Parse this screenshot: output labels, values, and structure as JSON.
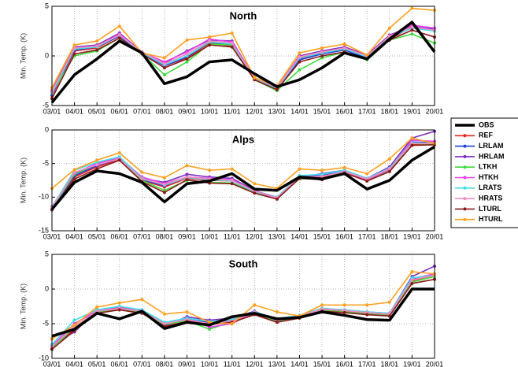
{
  "chart_data": [
    {
      "type": "line",
      "title": "North",
      "y_label": "Min. Temp. (K)",
      "categories": [
        "03/01",
        "04/01",
        "05/01",
        "06/01",
        "07/01",
        "08/01",
        "09/01",
        "10/01",
        "11/01",
        "12/01",
        "13/01",
        "14/01",
        "15/01",
        "16/01",
        "17/01",
        "18/01",
        "19/01",
        "20/01"
      ],
      "ylim": [
        -5,
        5
      ],
      "yticks": [
        -5,
        0,
        5
      ],
      "grid": true,
      "series": [
        {
          "name": "OBS",
          "color": "#000000",
          "values": [
            -4.7,
            -1.9,
            -0.3,
            1.5,
            0.3,
            -2.8,
            -2.1,
            -0.6,
            -0.4,
            -1.8,
            -3.1,
            -2.4,
            -1.2,
            0.3,
            -0.3,
            1.7,
            3.4,
            0.4
          ]
        },
        {
          "name": "REF",
          "color": "#e8231f",
          "values": [
            -4.0,
            0.5,
            0.8,
            2.0,
            0.3,
            -1.0,
            -0.2,
            1.3,
            1.0,
            -2.3,
            -3.3,
            -0.3,
            0.2,
            0.6,
            -0.2,
            1.7,
            2.9,
            2.6
          ]
        },
        {
          "name": "LRLAM",
          "color": "#1f3fdc",
          "values": [
            -3.9,
            0.6,
            0.9,
            2.0,
            0.3,
            -1.0,
            -0.1,
            1.4,
            1.1,
            -2.3,
            -3.3,
            -0.4,
            0.2,
            0.6,
            -0.2,
            1.8,
            2.9,
            2.7
          ]
        },
        {
          "name": "HRLAM",
          "color": "#7b2fbe",
          "values": [
            -3.5,
            0.9,
            1.1,
            2.3,
            0.4,
            -0.7,
            0.5,
            1.6,
            1.5,
            -2.2,
            -3.2,
            0.0,
            0.5,
            0.9,
            0.1,
            2.1,
            3.0,
            2.6
          ]
        },
        {
          "name": "LTKH",
          "color": "#3ddc3d",
          "values": [
            -3.7,
            0.0,
            0.5,
            1.8,
            0.2,
            -1.9,
            -0.6,
            1.2,
            1.1,
            -2.4,
            -3.5,
            -1.4,
            -0.2,
            0.4,
            -0.4,
            1.6,
            2.2,
            1.3
          ]
        },
        {
          "name": "HTKH",
          "color": "#e83ee8",
          "values": [
            -3.6,
            0.8,
            1.0,
            2.2,
            0.4,
            -0.6,
            0.4,
            1.7,
            1.4,
            -2.2,
            -3.2,
            -0.1,
            0.4,
            0.8,
            0.0,
            2.0,
            3.1,
            2.8
          ]
        },
        {
          "name": "LRATS",
          "color": "#3ee0e8",
          "values": [
            -3.8,
            0.7,
            0.9,
            2.1,
            0.3,
            -0.9,
            0.0,
            1.4,
            1.2,
            -2.3,
            -3.3,
            -0.2,
            0.3,
            0.7,
            -0.1,
            1.9,
            2.8,
            2.5
          ]
        },
        {
          "name": "HRATS",
          "color": "#f28cc0",
          "values": [
            -3.6,
            0.8,
            1.0,
            2.1,
            0.4,
            -0.8,
            0.2,
            1.5,
            1.3,
            -2.2,
            -3.2,
            -0.1,
            0.4,
            0.8,
            0.0,
            2.0,
            2.9,
            2.6
          ]
        },
        {
          "name": "LTURL",
          "color": "#8b1a1a",
          "values": [
            -4.3,
            0.2,
            0.6,
            1.8,
            0.2,
            -1.2,
            -0.3,
            1.1,
            0.9,
            -2.4,
            -3.4,
            -0.6,
            0.0,
            0.4,
            -0.3,
            1.6,
            2.6,
            1.9
          ]
        },
        {
          "name": "HTURL",
          "color": "#ffa020",
          "values": [
            -3.2,
            1.1,
            1.5,
            3.0,
            0.3,
            -0.2,
            1.6,
            1.9,
            2.3,
            -2.2,
            -3.0,
            0.3,
            0.8,
            1.2,
            0.1,
            2.8,
            4.8,
            4.6
          ]
        }
      ]
    },
    {
      "type": "line",
      "title": "Alps",
      "y_label": "Min. Temp. (K)",
      "categories": [
        "03/01",
        "04/01",
        "05/01",
        "06/01",
        "07/01",
        "08/01",
        "09/01",
        "10/01",
        "11/01",
        "12/01",
        "13/01",
        "14/01",
        "15/01",
        "16/01",
        "17/01",
        "18/01",
        "19/01",
        "20/01"
      ],
      "ylim": [
        -15,
        0
      ],
      "yticks": [
        -15,
        -10,
        -5,
        0
      ],
      "grid": true,
      "series": [
        {
          "name": "OBS",
          "color": "#000000",
          "values": [
            -11.8,
            -7.8,
            -6.1,
            -6.5,
            -7.8,
            -10.7,
            -8.0,
            -7.6,
            -6.5,
            -8.8,
            -9.0,
            -7.0,
            -7.3,
            -6.5,
            -8.8,
            -7.5,
            -4.5,
            -2.5
          ]
        },
        {
          "name": "REF",
          "color": "#e8231f",
          "values": [
            -11.8,
            -7.0,
            -5.5,
            -4.4,
            -7.5,
            -8.5,
            -7.2,
            -7.5,
            -7.6,
            -9.2,
            -10.0,
            -7.0,
            -7.0,
            -6.2,
            -7.5,
            -6.0,
            -2.2,
            -2.0
          ]
        },
        {
          "name": "LRLAM",
          "color": "#1f3fdc",
          "values": [
            -11.7,
            -6.8,
            -5.3,
            -4.3,
            -7.4,
            -8.3,
            -7.0,
            -7.3,
            -7.5,
            -9.1,
            -10.0,
            -6.9,
            -6.8,
            -6.1,
            -7.3,
            -5.8,
            -1.8,
            -1.9
          ]
        },
        {
          "name": "HRLAM",
          "color": "#7b2fbe",
          "values": [
            -11.5,
            -6.5,
            -5.0,
            -4.2,
            -7.2,
            -7.8,
            -6.6,
            -7.0,
            -7.2,
            -9.0,
            -10.2,
            -7.1,
            -6.5,
            -6.0,
            -7.2,
            -5.5,
            -1.2,
            -0.2
          ]
        },
        {
          "name": "LTKH",
          "color": "#3ddc3d",
          "values": [
            -11.6,
            -6.6,
            -5.1,
            -4.3,
            -7.5,
            -9.0,
            -7.5,
            -7.8,
            -7.9,
            -9.3,
            -10.1,
            -7.3,
            -7.2,
            -6.3,
            -7.6,
            -6.0,
            -2.0,
            -2.1
          ]
        },
        {
          "name": "HTKH",
          "color": "#e83ee8",
          "values": [
            -11.4,
            -6.4,
            -5.0,
            -4.1,
            -7.0,
            -8.0,
            -7.0,
            -7.2,
            -7.4,
            -9.1,
            -10.2,
            -7.2,
            -6.9,
            -6.2,
            -7.4,
            -5.9,
            -1.5,
            -1.7
          ]
        },
        {
          "name": "LRATS",
          "color": "#3ee0e8",
          "values": [
            -11.5,
            -6.0,
            -4.8,
            -4.0,
            -7.2,
            -8.2,
            -7.1,
            -7.4,
            -7.6,
            -9.2,
            -10.0,
            -6.8,
            -6.6,
            -6.0,
            -7.2,
            -5.7,
            -1.9,
            -2.0
          ]
        },
        {
          "name": "HRATS",
          "color": "#f28cc0",
          "values": [
            -11.6,
            -6.3,
            -5.2,
            -4.3,
            -7.3,
            -8.1,
            -7.0,
            -7.3,
            -7.5,
            -9.1,
            -10.1,
            -7.0,
            -6.9,
            -6.2,
            -7.3,
            -5.8,
            -2.0,
            -2.0
          ]
        },
        {
          "name": "LTURL",
          "color": "#8b1a1a",
          "values": [
            -11.9,
            -7.3,
            -5.8,
            -4.5,
            -7.7,
            -9.3,
            -7.4,
            -7.9,
            -8.0,
            -9.4,
            -10.3,
            -7.2,
            -7.4,
            -6.4,
            -7.6,
            -6.2,
            -2.3,
            -2.2
          ]
        },
        {
          "name": "HTURL",
          "color": "#ffa020",
          "values": [
            -8.7,
            -5.9,
            -4.5,
            -3.4,
            -6.3,
            -7.1,
            -5.3,
            -6.0,
            -5.8,
            -8.0,
            -8.7,
            -5.8,
            -6.0,
            -5.6,
            -6.5,
            -4.3,
            -1.2,
            -2.0
          ]
        }
      ]
    },
    {
      "type": "line",
      "title": "South",
      "y_label": "Min. Temp. (K)",
      "categories": [
        "03/01",
        "04/01",
        "05/01",
        "06/01",
        "07/01",
        "08/01",
        "09/01",
        "10/01",
        "11/01",
        "12/01",
        "13/01",
        "14/01",
        "15/01",
        "16/01",
        "17/01",
        "18/01",
        "19/01",
        "20/01"
      ],
      "ylim": [
        -10,
        5
      ],
      "yticks": [
        -10,
        -5,
        0,
        5
      ],
      "grid": true,
      "series": [
        {
          "name": "OBS",
          "color": "#000000",
          "values": [
            -6.8,
            -5.8,
            -3.5,
            -4.3,
            -3.2,
            -5.7,
            -4.8,
            -5.2,
            -4.0,
            -3.5,
            -4.3,
            -4.1,
            -3.3,
            -3.8,
            -4.4,
            -4.5,
            0.0,
            0.0
          ]
        },
        {
          "name": "REF",
          "color": "#e8231f",
          "values": [
            -8.5,
            -5.8,
            -3.3,
            -2.8,
            -3.3,
            -5.2,
            -4.5,
            -5.0,
            -4.6,
            -3.5,
            -4.5,
            -4.0,
            -3.0,
            -3.2,
            -3.5,
            -3.7,
            1.2,
            2.0
          ]
        },
        {
          "name": "LRLAM",
          "color": "#1f3fdc",
          "values": [
            -8.3,
            -5.6,
            -3.2,
            -2.7,
            -3.2,
            -5.0,
            -4.4,
            -4.8,
            -4.5,
            -3.4,
            -4.4,
            -3.9,
            -2.9,
            -3.1,
            -3.4,
            -3.6,
            1.4,
            2.1
          ]
        },
        {
          "name": "HRLAM",
          "color": "#7b2fbe",
          "values": [
            -8.0,
            -6.2,
            -3.0,
            -2.6,
            -3.0,
            -5.3,
            -4.0,
            -4.5,
            -4.2,
            -3.2,
            -4.6,
            -3.8,
            -2.8,
            -3.0,
            -3.3,
            -3.5,
            1.8,
            3.3
          ]
        },
        {
          "name": "LTKH",
          "color": "#3ddc3d",
          "values": [
            -8.6,
            -5.5,
            -3.4,
            -2.9,
            -3.4,
            -5.1,
            -4.6,
            -5.8,
            -4.7,
            -3.6,
            -4.7,
            -4.1,
            -3.1,
            -3.3,
            -3.6,
            -3.8,
            1.0,
            1.8
          ]
        },
        {
          "name": "HTKH",
          "color": "#e83ee8",
          "values": [
            -8.2,
            -5.0,
            -3.1,
            -2.7,
            -3.1,
            -5.0,
            -4.3,
            -5.5,
            -5.0,
            -3.3,
            -4.5,
            -4.0,
            -2.9,
            -3.0,
            -3.4,
            -3.6,
            1.5,
            2.2
          ]
        },
        {
          "name": "LRATS",
          "color": "#3ee0e8",
          "values": [
            -8.0,
            -4.5,
            -3.0,
            -2.5,
            -3.0,
            -4.8,
            -4.2,
            -4.7,
            -4.4,
            -3.3,
            -4.3,
            -3.8,
            -2.8,
            -3.0,
            -3.3,
            -3.5,
            1.6,
            2.0
          ]
        },
        {
          "name": "HRATS",
          "color": "#f28cc0",
          "values": [
            -8.3,
            -5.4,
            -3.2,
            -2.8,
            -3.2,
            -5.0,
            -4.4,
            -5.0,
            -4.6,
            -3.4,
            -4.4,
            -3.9,
            -2.9,
            -3.1,
            -3.4,
            -3.6,
            1.3,
            2.0
          ]
        },
        {
          "name": "LTURL",
          "color": "#8b1a1a",
          "values": [
            -8.7,
            -6.0,
            -3.5,
            -3.0,
            -3.5,
            -5.4,
            -4.7,
            -5.1,
            -4.8,
            -3.7,
            -4.8,
            -4.2,
            -3.2,
            -3.4,
            -3.7,
            -3.9,
            0.8,
            1.4
          ]
        },
        {
          "name": "HTURL",
          "color": "#ffa020",
          "values": [
            -7.2,
            -5.2,
            -2.6,
            -2.0,
            -1.5,
            -3.6,
            -3.3,
            -4.8,
            -5.0,
            -2.3,
            -3.3,
            -3.9,
            -2.3,
            -2.3,
            -2.3,
            -1.9,
            2.5,
            2.2
          ]
        }
      ]
    }
  ]
}
